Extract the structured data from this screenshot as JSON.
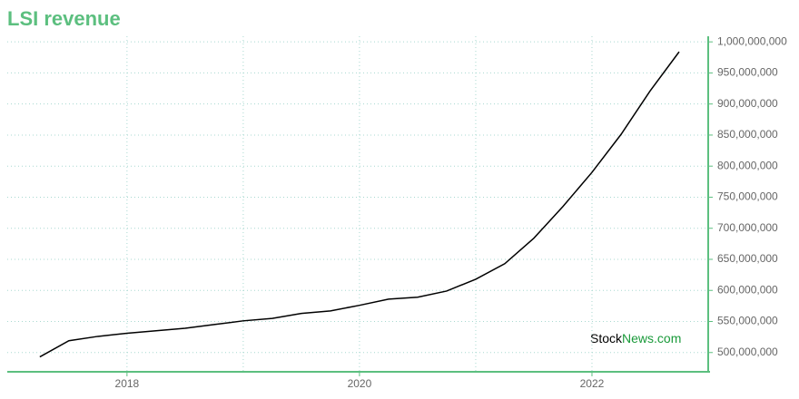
{
  "chart_data": {
    "type": "line",
    "title": "LSI revenue",
    "watermark": [
      "Stock",
      "News.com"
    ],
    "x": [
      2017.25,
      2017.5,
      2017.75,
      2018,
      2018.25,
      2018.5,
      2018.75,
      2019,
      2019.25,
      2019.5,
      2019.75,
      2020,
      2020.25,
      2020.5,
      2020.75,
      2021,
      2021.25,
      2021.5,
      2021.75,
      2022,
      2022.25,
      2022.5,
      2022.75
    ],
    "series": [
      {
        "name": "LSI revenue",
        "color": "#000000",
        "values": [
          493000000,
          519000000,
          526000000,
          531000000,
          535000000,
          539000000,
          545000000,
          551000000,
          555000000,
          563000000,
          567000000,
          576000000,
          586000000,
          589000000,
          599000000,
          618000000,
          643000000,
          684000000,
          735000000,
          790000000,
          851000000,
          921000000,
          984000000
        ]
      }
    ],
    "xlim": [
      2016.97,
      2023.0
    ],
    "ylim": [
      469000000,
      1009000000
    ],
    "xticks": [
      2018,
      2020,
      2022
    ],
    "x_minor_grid": [
      2019,
      2021
    ],
    "yticks": [
      {
        "value": 500000000,
        "label": "500,000,000"
      },
      {
        "value": 550000000,
        "label": "550,000,000"
      },
      {
        "value": 600000000,
        "label": "600,000,000"
      },
      {
        "value": 650000000,
        "label": "650,000,000"
      },
      {
        "value": 700000000,
        "label": "700,000,000"
      },
      {
        "value": 750000000,
        "label": "750,000,000"
      },
      {
        "value": 800000000,
        "label": "800,000,000"
      },
      {
        "value": 850000000,
        "label": "850,000,000"
      },
      {
        "value": 900000000,
        "label": "900,000,000"
      },
      {
        "value": 950000000,
        "label": "950,000,000"
      },
      {
        "value": 1000000000,
        "label": "1,000,000,000"
      }
    ],
    "grid": true,
    "axis_color": "#5cbf7f",
    "grid_color": "#a8d8d0"
  }
}
